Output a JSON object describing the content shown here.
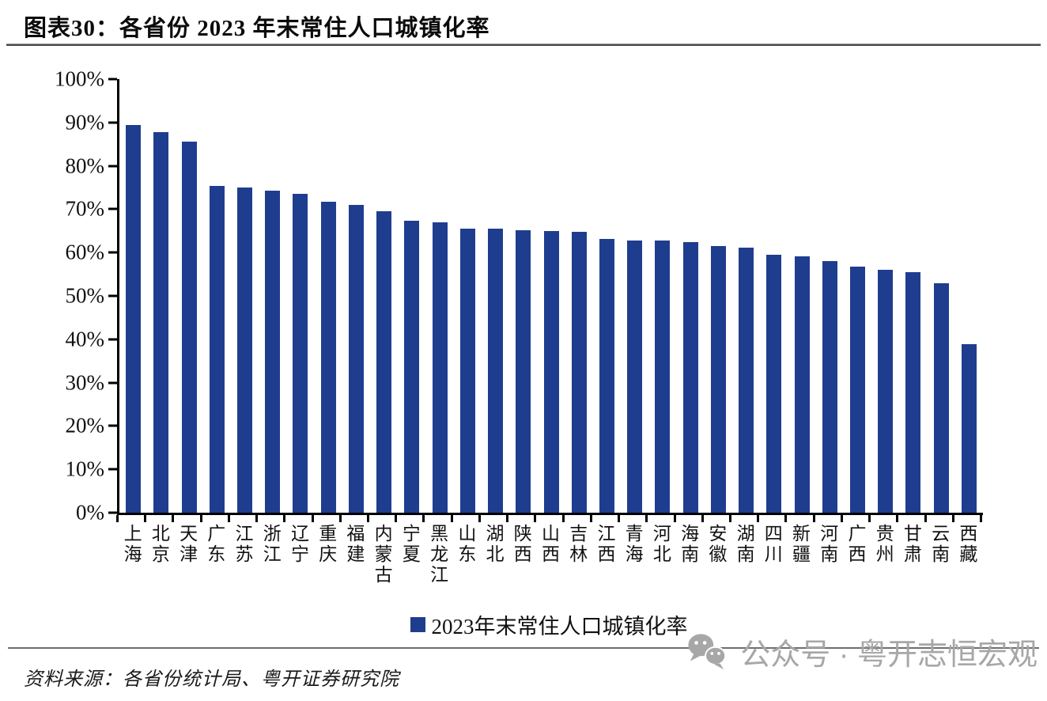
{
  "title": "图表30：各省份 2023 年末常住人口城镇化率",
  "chart_data": {
    "type": "bar",
    "title": "各省份 2023 年末常住人口城镇化率",
    "categories": [
      "上海",
      "北京",
      "天津",
      "广东",
      "江苏",
      "浙江",
      "辽宁",
      "重庆",
      "福建",
      "内蒙古",
      "宁夏",
      "黑龙江",
      "山东",
      "湖北",
      "陕西",
      "山西",
      "吉林",
      "江西",
      "青海",
      "河北",
      "海南",
      "安徽",
      "湖南",
      "四川",
      "新疆",
      "河南",
      "广西",
      "贵州",
      "甘肃",
      "云南",
      "西藏"
    ],
    "values": [
      89.5,
      87.8,
      85.5,
      75.4,
      75.0,
      74.2,
      73.5,
      71.7,
      71.0,
      69.6,
      67.3,
      67.0,
      65.5,
      65.5,
      65.2,
      65.0,
      64.7,
      63.1,
      62.8,
      62.8,
      62.5,
      61.5,
      61.2,
      59.5,
      59.2,
      58.1,
      56.8,
      56.0,
      55.5,
      52.9,
      38.9
    ],
    "xlabel": "",
    "ylabel": "",
    "ylim": [
      0,
      100
    ],
    "y_tick_labels": [
      "0%",
      "10%",
      "20%",
      "30%",
      "40%",
      "50%",
      "60%",
      "70%",
      "80%",
      "90%",
      "100%"
    ],
    "grid": false,
    "legend_position": "bottom",
    "legend_label": "2023年末常住人口城镇化率",
    "bar_color": "#1F3D8F"
  },
  "source_note": "资料来源：各省份统计局、粤开证券研究院",
  "watermark": {
    "icon": "wechat-icon",
    "text": "公众号 · 粤开志恒宏观",
    "color": "#a7a7a7"
  }
}
